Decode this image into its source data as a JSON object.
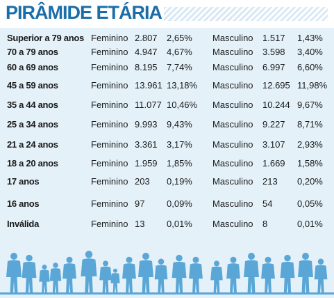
{
  "title": "PIRÂMIDE ETÁRIA",
  "rows": [
    {
      "age": "Superior a 79 anos",
      "fem_label": "Feminino",
      "fem_count": "2.807",
      "fem_pct": "2,65%",
      "masc_label": "Masculino",
      "masc_count": "1.517",
      "masc_pct": "1,43%"
    },
    {
      "age": "70 a 79 anos",
      "fem_label": "Feminino",
      "fem_count": "4.947",
      "fem_pct": "4,67%",
      "masc_label": "Masculino",
      "masc_count": "3.598",
      "masc_pct": "3,40%"
    },
    {
      "age": "60 a 69 anos",
      "fem_label": "Feminino",
      "fem_count": "8.195",
      "fem_pct": "7,74%",
      "masc_label": "Masculino",
      "masc_count": "6.997",
      "masc_pct": "6,60%"
    },
    {
      "age": "45 a 59 anos",
      "fem_label": "Feminino",
      "fem_count": "13.961",
      "fem_pct": "13,18%",
      "masc_label": "Masculino",
      "masc_count": "12.695",
      "masc_pct": "11,98%"
    },
    {
      "age": "35 a 44 anos",
      "fem_label": "Feminino",
      "fem_count": "11.077",
      "fem_pct": "10,46%",
      "masc_label": "Masculino",
      "masc_count": "10.244",
      "masc_pct": "9,67%"
    },
    {
      "age": "25 a 34 anos",
      "fem_label": "Feminino",
      "fem_count": "9.993",
      "fem_pct": "9,43%",
      "masc_label": "Masculino",
      "masc_count": "9.227",
      "masc_pct": "8,71%"
    },
    {
      "age": "21 a 24 anos",
      "fem_label": "Feminino",
      "fem_count": "3.361",
      "fem_pct": "3,17%",
      "masc_label": "Masculino",
      "masc_count": "3.107",
      "masc_pct": "2,93%"
    },
    {
      "age": "18 a 20 anos",
      "fem_label": "Feminino",
      "fem_count": "1.959",
      "fem_pct": "1,85%",
      "masc_label": "Masculino",
      "masc_count": "1.669",
      "masc_pct": "1,58%"
    },
    {
      "age": "17 anos",
      "fem_label": "Feminino",
      "fem_count": "203",
      "fem_pct": "0,19%",
      "masc_label": "Masculino",
      "masc_count": "213",
      "masc_pct": "0,20%"
    },
    {
      "age": "16 anos",
      "fem_label": "Feminino",
      "fem_count": "97",
      "fem_pct": "0,09%",
      "masc_label": "Masculino",
      "masc_count": "54",
      "masc_pct": "0,05%"
    },
    {
      "age": "Inválida",
      "fem_label": "Feminino",
      "fem_count": "13",
      "fem_pct": "0,01%",
      "masc_label": "Masculino",
      "masc_count": "8",
      "masc_pct": "0,01%"
    }
  ],
  "colors": {
    "title": "#1b6ea8",
    "table_bg": "#e4f1f9",
    "silhouette": "#5aa6d6"
  }
}
